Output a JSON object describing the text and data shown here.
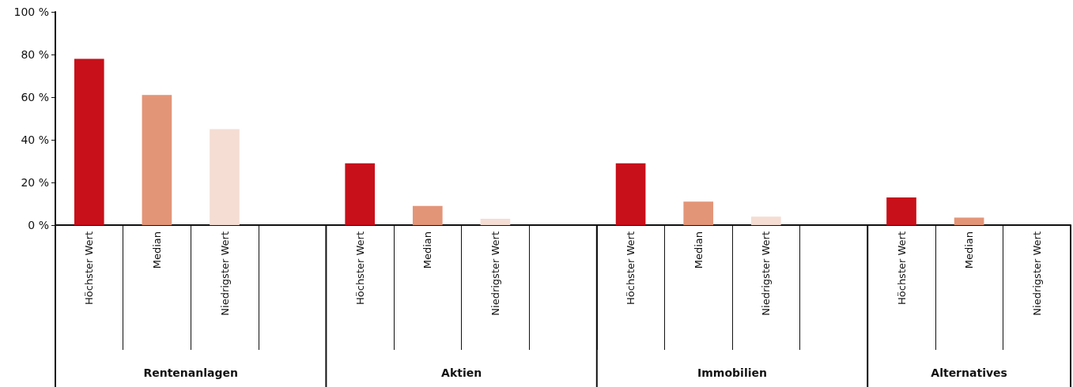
{
  "chart_data": {
    "type": "bar",
    "categories": [
      "Höchster Wert",
      "Median",
      "Niedrigster Wert",
      null,
      "Höchster Wert",
      "Median",
      "Niedrigster Wert",
      null,
      "Höchster Wert",
      "Median",
      "Niedrigster Wert",
      null,
      "Höchster Wert",
      "Median",
      "Niedrigster Wert"
    ],
    "values": [
      78,
      61,
      45,
      null,
      29,
      9,
      3,
      null,
      29,
      11,
      4,
      null,
      13,
      3.5,
      0
    ],
    "colors": [
      "#c8101a",
      "#e39578",
      "#f5ddd4",
      null,
      "#c8101a",
      "#e39578",
      "#f5ddd4",
      null,
      "#c8101a",
      "#e39578",
      "#f5ddd4",
      null,
      "#c8101a",
      "#e39578",
      "#f5ddd4"
    ],
    "ylim": [
      0,
      100
    ],
    "yticks": [
      {
        "value": 0,
        "label": "0 %"
      },
      {
        "value": 20,
        "label": "20 %"
      },
      {
        "value": 40,
        "label": "40 %"
      },
      {
        "value": 60,
        "label": "60 %"
      },
      {
        "value": 80,
        "label": "80 %"
      },
      {
        "value": 100,
        "label": "100 %"
      }
    ],
    "annotations": [
      "Rentenanlagen",
      "Aktien",
      "Immobilien",
      "Alternatives"
    ],
    "grid": false
  }
}
